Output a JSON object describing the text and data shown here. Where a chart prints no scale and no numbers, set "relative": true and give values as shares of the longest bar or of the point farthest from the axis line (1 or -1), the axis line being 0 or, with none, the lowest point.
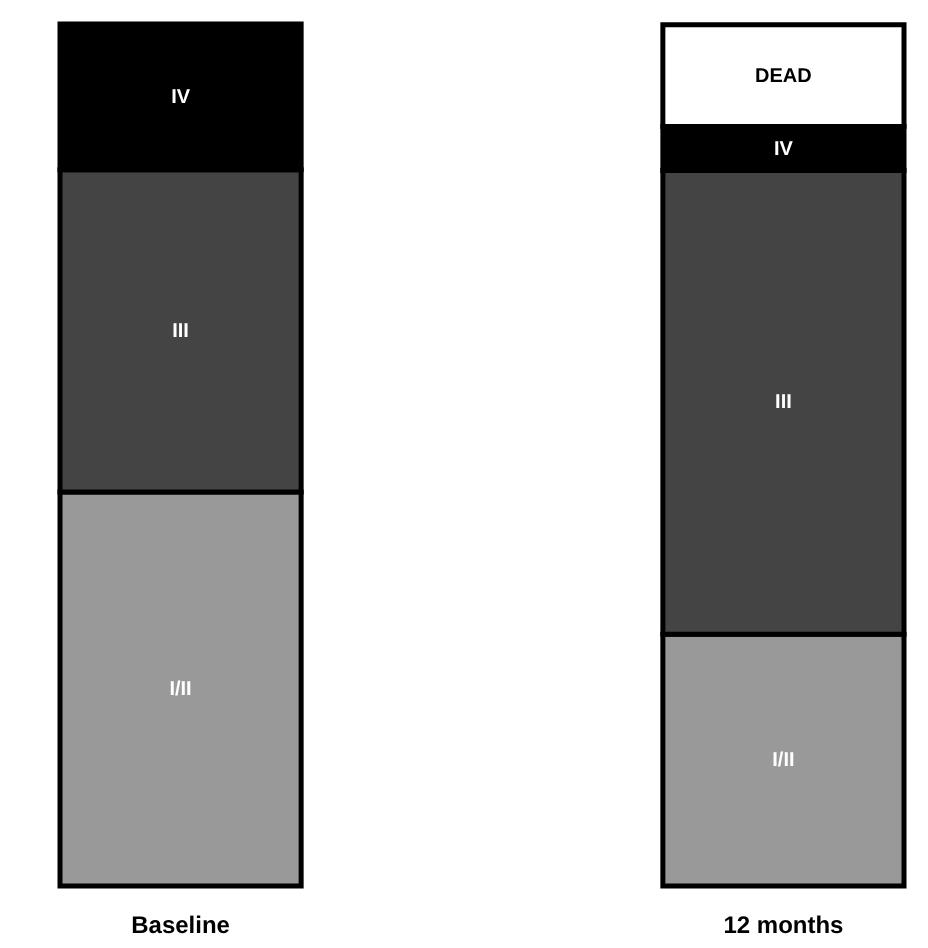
{
  "chart_data": {
    "type": "bar",
    "stacked": true,
    "relative": true,
    "categories": [
      "Baseline",
      "12 months"
    ],
    "series": [
      {
        "name": "I/II",
        "color": "#999999",
        "values": [
          0.457,
          0.292
        ]
      },
      {
        "name": "III",
        "color": "#444444",
        "values": [
          0.374,
          0.538
        ]
      },
      {
        "name": "IV",
        "color": "#000000",
        "values": [
          0.169,
          0.051
        ]
      },
      {
        "name": "DEAD",
        "color": "#ffffff",
        "values": [
          null,
          0.118
        ]
      }
    ]
  }
}
